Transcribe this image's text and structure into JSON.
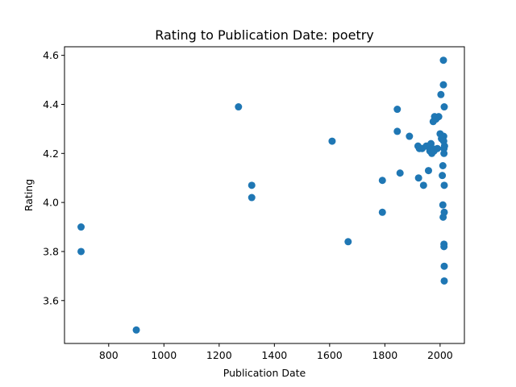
{
  "chart_data": {
    "type": "scatter",
    "title": "Rating to Publication Date: poetry",
    "xlabel": "Publication Date",
    "ylabel": "Rating",
    "xlim": [
      640,
      2088
    ],
    "ylim": [
      3.425,
      4.635
    ],
    "xticks": [
      800,
      1000,
      1200,
      1400,
      1600,
      1800,
      2000
    ],
    "xtick_labels": [
      "800",
      "1000",
      "1200",
      "1400",
      "1600",
      "1800",
      "2000"
    ],
    "yticks": [
      3.6,
      3.8,
      4.0,
      4.2,
      4.4,
      4.6
    ],
    "ytick_labels": [
      "3.6",
      "3.8",
      "4.0",
      "4.2",
      "4.4",
      "4.6"
    ],
    "grid": false,
    "marker_color": "#1f77b4",
    "points": [
      {
        "x": 700,
        "y": 3.9
      },
      {
        "x": 700,
        "y": 3.8
      },
      {
        "x": 900,
        "y": 3.48
      },
      {
        "x": 1270,
        "y": 4.39
      },
      {
        "x": 1318,
        "y": 4.07
      },
      {
        "x": 1318,
        "y": 4.02
      },
      {
        "x": 1609,
        "y": 4.25
      },
      {
        "x": 1667,
        "y": 3.84
      },
      {
        "x": 1791,
        "y": 4.09
      },
      {
        "x": 1791,
        "y": 3.96
      },
      {
        "x": 1845,
        "y": 4.38
      },
      {
        "x": 1845,
        "y": 4.29
      },
      {
        "x": 1855,
        "y": 4.12
      },
      {
        "x": 1889,
        "y": 4.27
      },
      {
        "x": 1920,
        "y": 4.23
      },
      {
        "x": 1922,
        "y": 4.1
      },
      {
        "x": 1925,
        "y": 4.22
      },
      {
        "x": 1935,
        "y": 4.22
      },
      {
        "x": 1940,
        "y": 4.07
      },
      {
        "x": 1950,
        "y": 4.23
      },
      {
        "x": 1958,
        "y": 4.13
      },
      {
        "x": 1963,
        "y": 4.21
      },
      {
        "x": 1967,
        "y": 4.24
      },
      {
        "x": 1970,
        "y": 4.2
      },
      {
        "x": 1972,
        "y": 4.22
      },
      {
        "x": 1975,
        "y": 4.33
      },
      {
        "x": 1978,
        "y": 4.21
      },
      {
        "x": 1980,
        "y": 4.35
      },
      {
        "x": 1985,
        "y": 4.34
      },
      {
        "x": 1990,
        "y": 4.22
      },
      {
        "x": 1995,
        "y": 4.35
      },
      {
        "x": 2000,
        "y": 4.28
      },
      {
        "x": 2003,
        "y": 4.44
      },
      {
        "x": 2005,
        "y": 4.26
      },
      {
        "x": 2008,
        "y": 4.11
      },
      {
        "x": 2010,
        "y": 4.15
      },
      {
        "x": 2010,
        "y": 3.99
      },
      {
        "x": 2011,
        "y": 3.94
      },
      {
        "x": 2012,
        "y": 4.58
      },
      {
        "x": 2012,
        "y": 4.48
      },
      {
        "x": 2013,
        "y": 4.27
      },
      {
        "x": 2013,
        "y": 4.25
      },
      {
        "x": 2014,
        "y": 4.22
      },
      {
        "x": 2014,
        "y": 4.2
      },
      {
        "x": 2014,
        "y": 3.83
      },
      {
        "x": 2014,
        "y": 3.82
      },
      {
        "x": 2015,
        "y": 4.39
      },
      {
        "x": 2015,
        "y": 4.07
      },
      {
        "x": 2015,
        "y": 3.96
      },
      {
        "x": 2015,
        "y": 3.74
      },
      {
        "x": 2015,
        "y": 3.68
      },
      {
        "x": 2016,
        "y": 4.23
      }
    ]
  }
}
